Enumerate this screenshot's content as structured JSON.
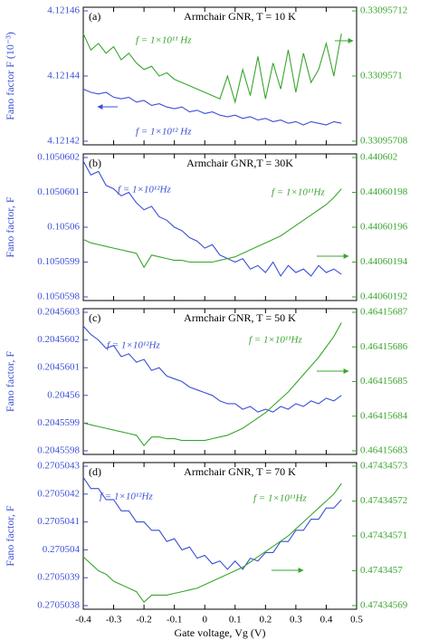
{
  "chart_data": [
    {
      "type": "line",
      "label": "(a)",
      "title": "Armchair GNR, T = 10 K",
      "ylabel": "Fano factor F (10⁻³)",
      "x": [
        -0.4,
        -0.375,
        -0.35,
        -0.325,
        -0.3,
        -0.275,
        -0.25,
        -0.225,
        -0.2,
        -0.175,
        -0.15,
        -0.125,
        -0.1,
        -0.075,
        -0.05,
        -0.025,
        0,
        0.025,
        0.05,
        0.075,
        0.1,
        0.125,
        0.15,
        0.175,
        0.2,
        0.225,
        0.25,
        0.275,
        0.3,
        0.325,
        0.35,
        0.375,
        0.4,
        0.425,
        0.45
      ],
      "xlim": [
        -0.4,
        0.5
      ],
      "xticks": [
        -0.4,
        -0.3,
        -0.2,
        -0.1,
        0,
        0.1,
        0.2,
        0.3,
        0.4,
        0.5
      ],
      "ylim": [
        4.12142,
        4.12146
      ],
      "yticks": [
        4.12142,
        4.12144,
        4.12146
      ],
      "y2lim": [
        0.33095708,
        0.33095712
      ],
      "y2ticks": [
        0.33095708,
        0.3309571,
        0.33095712
      ],
      "series": [
        {
          "name": "f = 1×10¹² Hz",
          "color": "#3b4fd6",
          "axis": "y",
          "values": [
            4.121436,
            4.121435,
            4.1214345,
            4.121435,
            4.1214335,
            4.121433,
            4.1214335,
            4.121432,
            4.1214325,
            4.121431,
            4.1214315,
            4.1214305,
            4.12143,
            4.1214305,
            4.121429,
            4.1214295,
            4.1214285,
            4.121429,
            4.121428,
            4.1214275,
            4.121428,
            4.121427,
            4.1214275,
            4.1214265,
            4.121427,
            4.121426,
            4.1214265,
            4.1214255,
            4.121426,
            4.121425,
            4.121426,
            4.1214255,
            4.121425,
            4.121426,
            4.1214255
          ]
        },
        {
          "name": "f = 1×10¹¹ Hz",
          "color": "#3aa52e",
          "axis": "y2",
          "values": [
            0.330957113,
            0.330957108,
            0.33095711,
            0.330957107,
            0.330957109,
            0.330957105,
            0.330957107,
            0.330957104,
            0.330957102,
            0.330957103,
            0.3309571,
            0.330957101,
            0.330957099,
            0.330957098,
            0.330957097,
            0.330957096,
            0.330957095,
            0.330957094,
            0.330957093,
            0.3309571,
            0.330957092,
            0.330957102,
            0.330957094,
            0.330957106,
            0.330957093,
            0.330957104,
            0.330957096,
            0.330957108,
            0.330957095,
            0.330957107,
            0.330957098,
            0.330957102,
            0.33095711,
            0.3309571,
            0.330957113
          ]
        }
      ]
    },
    {
      "type": "line",
      "label": "(b)",
      "title": "Armchair GNR,T = 30K",
      "ylabel": "Fano factor, F",
      "x": [
        -0.4,
        -0.375,
        -0.35,
        -0.325,
        -0.3,
        -0.275,
        -0.25,
        -0.225,
        -0.2,
        -0.175,
        -0.15,
        -0.125,
        -0.1,
        -0.075,
        -0.05,
        -0.025,
        0,
        0.025,
        0.05,
        0.075,
        0.1,
        0.125,
        0.15,
        0.175,
        0.2,
        0.225,
        0.25,
        0.275,
        0.3,
        0.325,
        0.35,
        0.375,
        0.4,
        0.425,
        0.45
      ],
      "xlim": [
        -0.4,
        0.5
      ],
      "xticks": [
        -0.4,
        -0.3,
        -0.2,
        -0.1,
        0,
        0.1,
        0.2,
        0.3,
        0.4,
        0.5
      ],
      "ylim": [
        0.1050598,
        0.1050602
      ],
      "yticks": [
        0.1050598,
        0.1050599,
        0.10506,
        0.1050601,
        0.1050602
      ],
      "y2lim": [
        0.44060192,
        0.440602
      ],
      "y2ticks": [
        0.44060192,
        0.44060194,
        0.44060196,
        0.44060198,
        0.440602
      ],
      "series": [
        {
          "name": "f = 1×10¹²Hz",
          "color": "#3b4fd6",
          "axis": "y",
          "values": [
            0.10506019,
            0.10506015,
            0.10506016,
            0.10506012,
            0.10506011,
            0.10506009,
            0.1050601,
            0.10506007,
            0.10506005,
            0.10506006,
            0.10506003,
            0.10506002,
            0.10506,
            0.10505999,
            0.10505997,
            0.10505996,
            0.10505994,
            0.10505995,
            0.10505992,
            0.10505991,
            0.1050599,
            0.10505991,
            0.10505988,
            0.10505989,
            0.10505987,
            0.1050599,
            0.10505986,
            0.10505989,
            0.10505987,
            0.10505988,
            0.10505986,
            0.10505989,
            0.10505987,
            0.10505988,
            0.105059865
          ]
        },
        {
          "name": "f = 1×10¹¹Hz",
          "color": "#3aa52e",
          "axis": "y2",
          "values": [
            0.440601953,
            0.440601951,
            0.44060195,
            0.440601949,
            0.440601948,
            0.440601947,
            0.440601946,
            0.440601945,
            0.440601937,
            0.440601944,
            0.440601943,
            0.440601942,
            0.440601941,
            0.440601941,
            0.44060194,
            0.44060194,
            0.44060194,
            0.44060194,
            0.440601941,
            0.440601942,
            0.440601943,
            0.440601945,
            0.440601947,
            0.440601949,
            0.440601951,
            0.440601953,
            0.440601955,
            0.440601958,
            0.440601961,
            0.440601964,
            0.440601967,
            0.44060197,
            0.440601973,
            0.440601977,
            0.440601982
          ]
        }
      ]
    },
    {
      "type": "line",
      "label": "(c)",
      "title": "Armchair GNR, T = 50 K",
      "ylabel": "Fano factor, F",
      "x": [
        -0.4,
        -0.375,
        -0.35,
        -0.325,
        -0.3,
        -0.275,
        -0.25,
        -0.225,
        -0.2,
        -0.175,
        -0.15,
        -0.125,
        -0.1,
        -0.075,
        -0.05,
        -0.025,
        0,
        0.025,
        0.05,
        0.075,
        0.1,
        0.125,
        0.15,
        0.175,
        0.2,
        0.225,
        0.25,
        0.275,
        0.3,
        0.325,
        0.35,
        0.375,
        0.4,
        0.425,
        0.45
      ],
      "xlim": [
        -0.4,
        0.5
      ],
      "xticks": [
        -0.4,
        -0.3,
        -0.2,
        -0.1,
        0,
        0.1,
        0.2,
        0.3,
        0.4,
        0.5
      ],
      "ylim": [
        0.2045598,
        0.2045603
      ],
      "yticks": [
        0.2045598,
        0.2045599,
        0.20456,
        0.2045601,
        0.2045602,
        0.2045603
      ],
      "y2lim": [
        0.46415683,
        0.46415687
      ],
      "y2ticks": [
        0.46415683,
        0.46415684,
        0.46415685,
        0.46415686,
        0.46415687
      ],
      "series": [
        {
          "name": "f = 1×10¹²Hz",
          "color": "#3b4fd6",
          "axis": "y",
          "values": [
            0.20456025,
            0.20456022,
            0.2045602,
            0.20456017,
            0.20456018,
            0.20456014,
            0.20456015,
            0.20456012,
            0.20456013,
            0.20456009,
            0.2045601,
            0.20456007,
            0.20456006,
            0.20456005,
            0.20456003,
            0.20456002,
            0.20456001,
            0.20456,
            0.20455998,
            0.20455997,
            0.20455997,
            0.20455995,
            0.20455996,
            0.20455994,
            0.20455995,
            0.20455994,
            0.20455996,
            0.20455995,
            0.20455997,
            0.20455996,
            0.20455998,
            0.20455997,
            0.20455999,
            0.20455998,
            0.20456
          ]
        },
        {
          "name": "f = 1×10¹¹Hz",
          "color": "#3aa52e",
          "axis": "y2",
          "values": [
            0.464156838,
            0.4641568375,
            0.464156837,
            0.4641568365,
            0.464156836,
            0.4641568355,
            0.464156835,
            0.4641568345,
            0.4641568315,
            0.464156834,
            0.464156834,
            0.4641568335,
            0.4641568335,
            0.464156833,
            0.464156833,
            0.464156833,
            0.464156833,
            0.4641568335,
            0.464156834,
            0.4641568345,
            0.4641568355,
            0.4641568365,
            0.464156838,
            0.4641568395,
            0.464156841,
            0.464156843,
            0.464156845,
            0.464156847,
            0.4641568495,
            0.464156852,
            0.4641568545,
            0.464156857,
            0.46415686,
            0.464156863,
            0.464156867
          ]
        }
      ]
    },
    {
      "type": "line",
      "label": "(d)",
      "title": "Armchair GNR, T = 70 K",
      "ylabel": "Fano factor, F",
      "xlabel": "Gate voltage, Vg (V)",
      "x": [
        -0.4,
        -0.375,
        -0.35,
        -0.325,
        -0.3,
        -0.275,
        -0.25,
        -0.225,
        -0.2,
        -0.175,
        -0.15,
        -0.125,
        -0.1,
        -0.075,
        -0.05,
        -0.025,
        0,
        0.025,
        0.05,
        0.075,
        0.1,
        0.125,
        0.15,
        0.175,
        0.2,
        0.225,
        0.25,
        0.275,
        0.3,
        0.325,
        0.35,
        0.375,
        0.4,
        0.425,
        0.45
      ],
      "xlim": [
        -0.4,
        0.5
      ],
      "xticks": [
        -0.4,
        -0.3,
        -0.2,
        -0.1,
        0,
        0.1,
        0.2,
        0.3,
        0.4,
        0.5
      ],
      "ylim": [
        0.2705038,
        0.2705043
      ],
      "yticks": [
        0.2705038,
        0.2705039,
        0.270504,
        0.2705041,
        0.2705042,
        0.2705043
      ],
      "y2lim": [
        0.47434569,
        0.47434573
      ],
      "y2ticks": [
        0.47434569,
        0.4743457,
        0.47434571,
        0.47434572,
        0.47434573
      ],
      "series": [
        {
          "name": "f = 1×10¹²Hz",
          "color": "#3b4fd6",
          "axis": "y",
          "values": [
            0.27050426,
            0.27050422,
            0.27050422,
            0.27050418,
            0.27050418,
            0.27050414,
            0.27050414,
            0.2705041,
            0.2705041,
            0.27050407,
            0.27050407,
            0.27050403,
            0.27050404,
            0.270504,
            0.27050401,
            0.27050397,
            0.27050398,
            0.27050395,
            0.27050396,
            0.27050393,
            0.27050396,
            0.27050393,
            0.27050397,
            0.27050396,
            0.27050399,
            0.27050399,
            0.27050403,
            0.27050403,
            0.27050407,
            0.27050407,
            0.27050411,
            0.27050411,
            0.27050415,
            0.27050415,
            0.27050418
          ]
        },
        {
          "name": "f = 1×10¹¹Hz",
          "color": "#3aa52e",
          "axis": "y2",
          "values": [
            0.474345704,
            0.474345702,
            0.4743457,
            0.474345699,
            0.474345697,
            0.474345696,
            0.474345695,
            0.474345694,
            0.474345691,
            0.474345693,
            0.474345693,
            0.474345693,
            0.4743456935,
            0.474345694,
            0.4743456945,
            0.474345695,
            0.474345696,
            0.474345697,
            0.474345698,
            0.474345699,
            0.4743457,
            0.474345701,
            0.4743457025,
            0.474345704,
            0.4743457055,
            0.474345707,
            0.4743457085,
            0.47434571,
            0.474345712,
            0.474345714,
            0.474345716,
            0.474345718,
            0.47434572,
            0.474345722,
            0.474345725
          ]
        }
      ]
    }
  ]
}
